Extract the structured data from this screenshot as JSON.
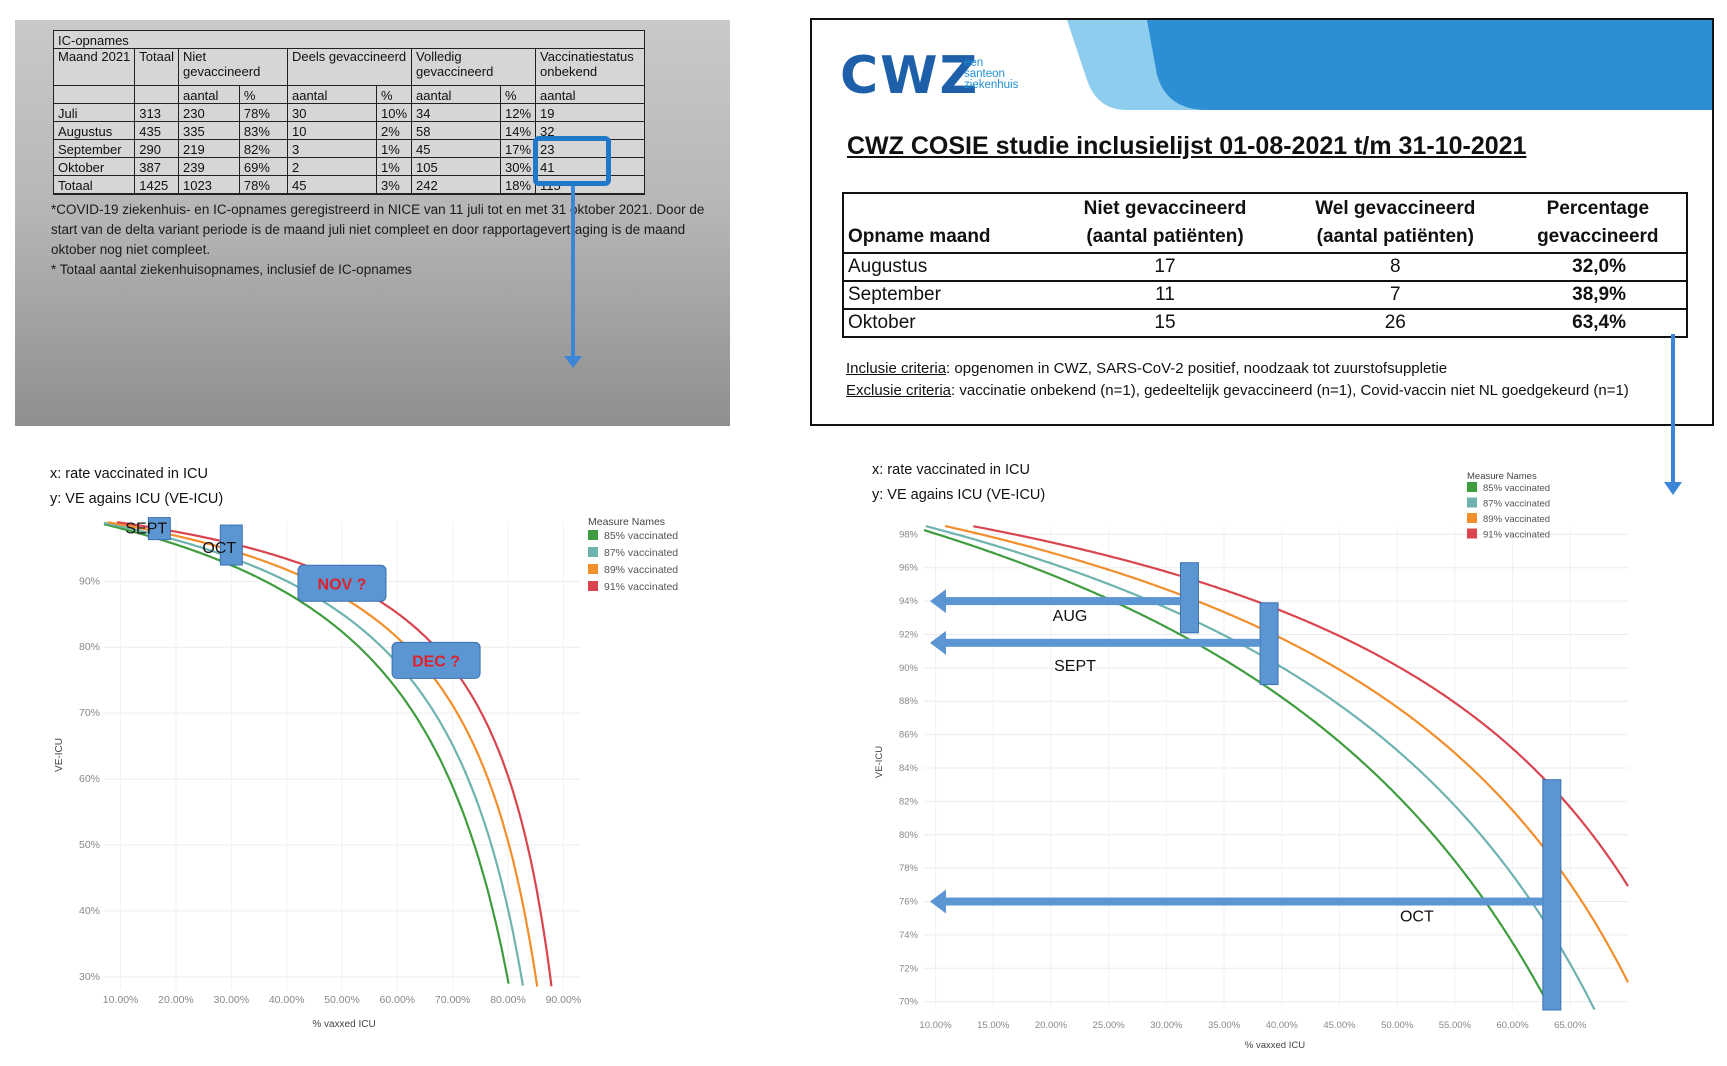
{
  "photo_table": {
    "title": "IC-opnames",
    "head1": [
      "Maand 2021",
      "Totaal",
      "Niet gevaccineerd",
      "",
      "Deels gevaccineerd",
      "",
      "Volledig gevaccineerd",
      "",
      "Vaccinatiestatus onbekend"
    ],
    "head2": [
      "",
      "",
      "aantal",
      "%",
      "aantal",
      "%",
      "aantal",
      "%",
      "aantal"
    ],
    "rows": [
      [
        "Juli",
        "313",
        "230",
        "78%",
        "30",
        "10%",
        "34",
        "12%",
        "19"
      ],
      [
        "Augustus",
        "435",
        "335",
        "83%",
        "10",
        "2%",
        "58",
        "14%",
        "32"
      ],
      [
        "September",
        "290",
        "219",
        "82%",
        "3",
        "1%",
        "45",
        "17%",
        "23"
      ],
      [
        "Oktober",
        "387",
        "239",
        "69%",
        "2",
        "1%",
        "105",
        "30%",
        "41"
      ],
      [
        "Totaal",
        "1425",
        "1023",
        "78%",
        "45",
        "3%",
        "242",
        "18%",
        "115"
      ]
    ],
    "note1": "*COVID-19 ziekenhuis- en IC-opnames geregistreerd in NICE van 11 juli tot en met 31 oktober 2021. Door de start van de delta variant periode is de maand juli niet compleet en door rapportagevertraging is de maand oktober nog niet compleet.",
    "note2": "* Totaal aantal ziekenhuisopnames, inclusief de IC-opnames"
  },
  "cwz": {
    "logo": "CWZ",
    "logo_sub": [
      "een",
      "santeon",
      "ziekenhuis"
    ],
    "title": "CWZ COSIE studie inclusielijst 01-08-2021 t/m 31-10-2021",
    "headers": [
      [
        "",
        "Opname maand"
      ],
      [
        "Niet gevaccineerd",
        "(aantal patiënten)"
      ],
      [
        "Wel gevaccineerd",
        "(aantal patiënten)"
      ],
      [
        "Percentage",
        "gevaccineerd"
      ]
    ],
    "rows": [
      [
        "Augustus",
        "17",
        "8",
        "32,0%"
      ],
      [
        "September",
        "11",
        "7",
        "38,9%"
      ],
      [
        "Oktober",
        "15",
        "26",
        "63,4%"
      ]
    ],
    "incl_label": "Inclusie criteria",
    "incl_text": ": opgenomen in CWZ, SARS-CoV-2 positief, noodzaak tot zuurstofsuppletie",
    "excl_label": "Exclusie criteria",
    "excl_text": ": vaccinatie onbekend (n=1), gedeeltelijk gevaccineerd (n=1), Covid-vaccin niet NL goedgekeurd (n=1)",
    "brand_color": "#1d5fa8"
  },
  "desc": {
    "x": "x: rate vaccinated in ICU",
    "y": "y: VE agains ICU (VE-ICU)"
  },
  "colors": {
    "green": "#3f9d3f",
    "teal": "#6fb3b0",
    "orange": "#f28e2b",
    "red": "#d9454f",
    "arrow": "#5b96d3"
  },
  "chart_data": [
    {
      "type": "line",
      "legend_title": "Measure Names",
      "legend_position": "top-right",
      "xlabel": "% vaxxed ICU",
      "ylabel": "VE-ICU",
      "xlim": [
        0.07,
        0.93
      ],
      "ylim": [
        0.28,
        0.99
      ],
      "xticks": [
        0.1,
        0.2,
        0.3,
        0.4,
        0.5,
        0.6,
        0.7,
        0.8,
        0.9
      ],
      "xtick_labels": [
        "10.00%",
        "20.00%",
        "30.00%",
        "40.00%",
        "50.00%",
        "60.00%",
        "70.00%",
        "80.00%",
        "90.00%"
      ],
      "yticks": [
        0.3,
        0.4,
        0.5,
        0.6,
        0.7,
        0.8,
        0.9
      ],
      "ytick_labels": [
        "30%",
        "40%",
        "50%",
        "60%",
        "70%",
        "80%",
        "90%"
      ],
      "series": [
        {
          "name": "85% vaccinated",
          "color": "#3f9d3f",
          "p": 0.85
        },
        {
          "name": "87% vaccinated",
          "color": "#6fb3b0",
          "p": 0.87
        },
        {
          "name": "89% vaccinated",
          "color": "#f28e2b",
          "p": 0.89
        },
        {
          "name": "91% vaccinated",
          "color": "#d9454f",
          "p": 0.91
        }
      ],
      "annotations": [
        {
          "label": "SEPT",
          "x": 0.17,
          "y": 0.98,
          "kind": "tick"
        },
        {
          "label": "OCT",
          "x": 0.3,
          "y": 0.955,
          "kind": "tick"
        },
        {
          "label": "NOV ?",
          "x": 0.5,
          "y": 0.897,
          "kind": "box"
        },
        {
          "label": "DEC ?",
          "x": 0.67,
          "y": 0.78,
          "kind": "box"
        }
      ]
    },
    {
      "type": "line",
      "legend_title": "Measure Names",
      "legend_position": "top-right",
      "xlabel": "% vaxxed ICU",
      "ylabel": "VE-ICU",
      "xlim": [
        0.09,
        0.7
      ],
      "ylim": [
        0.695,
        0.985
      ],
      "xticks": [
        0.1,
        0.15,
        0.2,
        0.25,
        0.3,
        0.35,
        0.4,
        0.45,
        0.5,
        0.55,
        0.6,
        0.65
      ],
      "xtick_labels": [
        "10.00%",
        "15.00%",
        "20.00%",
        "25.00%",
        "30.00%",
        "35.00%",
        "40.00%",
        "45.00%",
        "50.00%",
        "55.00%",
        "60.00%",
        "65.00%"
      ],
      "yticks": [
        0.7,
        0.72,
        0.74,
        0.76,
        0.78,
        0.8,
        0.82,
        0.84,
        0.86,
        0.88,
        0.9,
        0.92,
        0.94,
        0.96,
        0.98
      ],
      "ytick_labels": [
        "70%",
        "72%",
        "74%",
        "76%",
        "78%",
        "80%",
        "82%",
        "84%",
        "86%",
        "88%",
        "90%",
        "92%",
        "94%",
        "96%",
        "98%"
      ],
      "series": [
        {
          "name": "85% vaccinated",
          "color": "#3f9d3f",
          "p": 0.85
        },
        {
          "name": "87% vaccinated",
          "color": "#6fb3b0",
          "p": 0.87
        },
        {
          "name": "89% vaccinated",
          "color": "#f28e2b",
          "p": 0.89
        },
        {
          "name": "91% vaccinated",
          "color": "#d9454f",
          "p": 0.91
        }
      ],
      "annotations": [
        {
          "label": "AUG",
          "x": 0.32,
          "y": 0.94,
          "y_span": [
            0.921,
            0.963
          ]
        },
        {
          "label": "SEPT",
          "x": 0.389,
          "y": 0.915,
          "y_span": [
            0.89,
            0.939
          ]
        },
        {
          "label": "OCT",
          "x": 0.634,
          "y": 0.76,
          "y_span": [
            0.695,
            0.833
          ]
        }
      ]
    }
  ]
}
